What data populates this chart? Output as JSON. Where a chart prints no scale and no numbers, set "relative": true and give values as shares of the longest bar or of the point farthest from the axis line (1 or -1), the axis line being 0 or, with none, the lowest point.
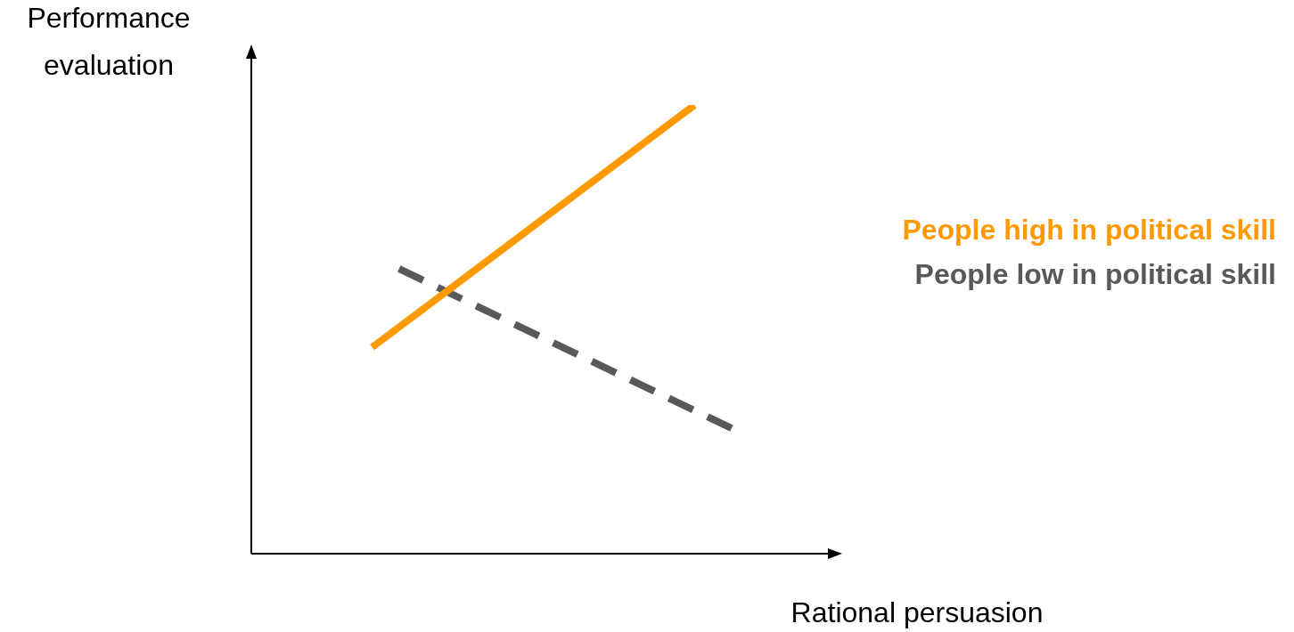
{
  "chart_data": {
    "type": "line",
    "relative": true,
    "xlabel": "Rational persuasion",
    "ylabel": "Performance evaluation",
    "legend": "right",
    "marker": "none",
    "tick_labels": false,
    "categories": [
      null,
      null,
      null,
      null,
      null,
      null,
      null,
      null,
      null,
      null,
      null,
      null,
      null,
      null,
      null,
      null,
      null,
      null,
      null,
      null,
      null,
      null,
      null,
      null,
      null,
      null,
      null,
      null,
      null,
      null,
      null,
      null,
      null,
      null,
      null,
      null,
      null,
      null,
      null,
      null,
      null,
      null,
      null,
      null,
      null
    ],
    "series": [
      {
        "name": "People high in political skill",
        "color": "#ff9900",
        "line_style": "solid",
        "values": [
          null,
          null,
          null,
          null,
          null,
          null,
          null,
          null,
          null,
          0.46,
          null,
          null,
          null,
          null,
          null,
          null,
          null,
          null,
          null,
          null,
          null,
          null,
          null,
          null,
          null,
          null,
          null,
          null,
          null,
          null,
          null,
          null,
          null,
          1,
          null,
          null,
          null,
          null,
          null,
          null,
          null,
          null,
          null,
          null,
          null
        ]
      },
      {
        "name": "People low in political skill",
        "color": "#595959",
        "line_style": "dashed",
        "values": [
          null,
          null,
          null,
          null,
          null,
          null,
          null,
          null,
          null,
          null,
          null,
          0.635,
          null,
          null,
          null,
          null,
          null,
          null,
          null,
          null,
          null,
          null,
          null,
          null,
          null,
          null,
          null,
          null,
          null,
          null,
          null,
          null,
          null,
          null,
          null,
          null,
          0.276,
          null,
          null,
          null,
          null,
          null,
          null,
          null,
          null
        ]
      }
    ]
  }
}
